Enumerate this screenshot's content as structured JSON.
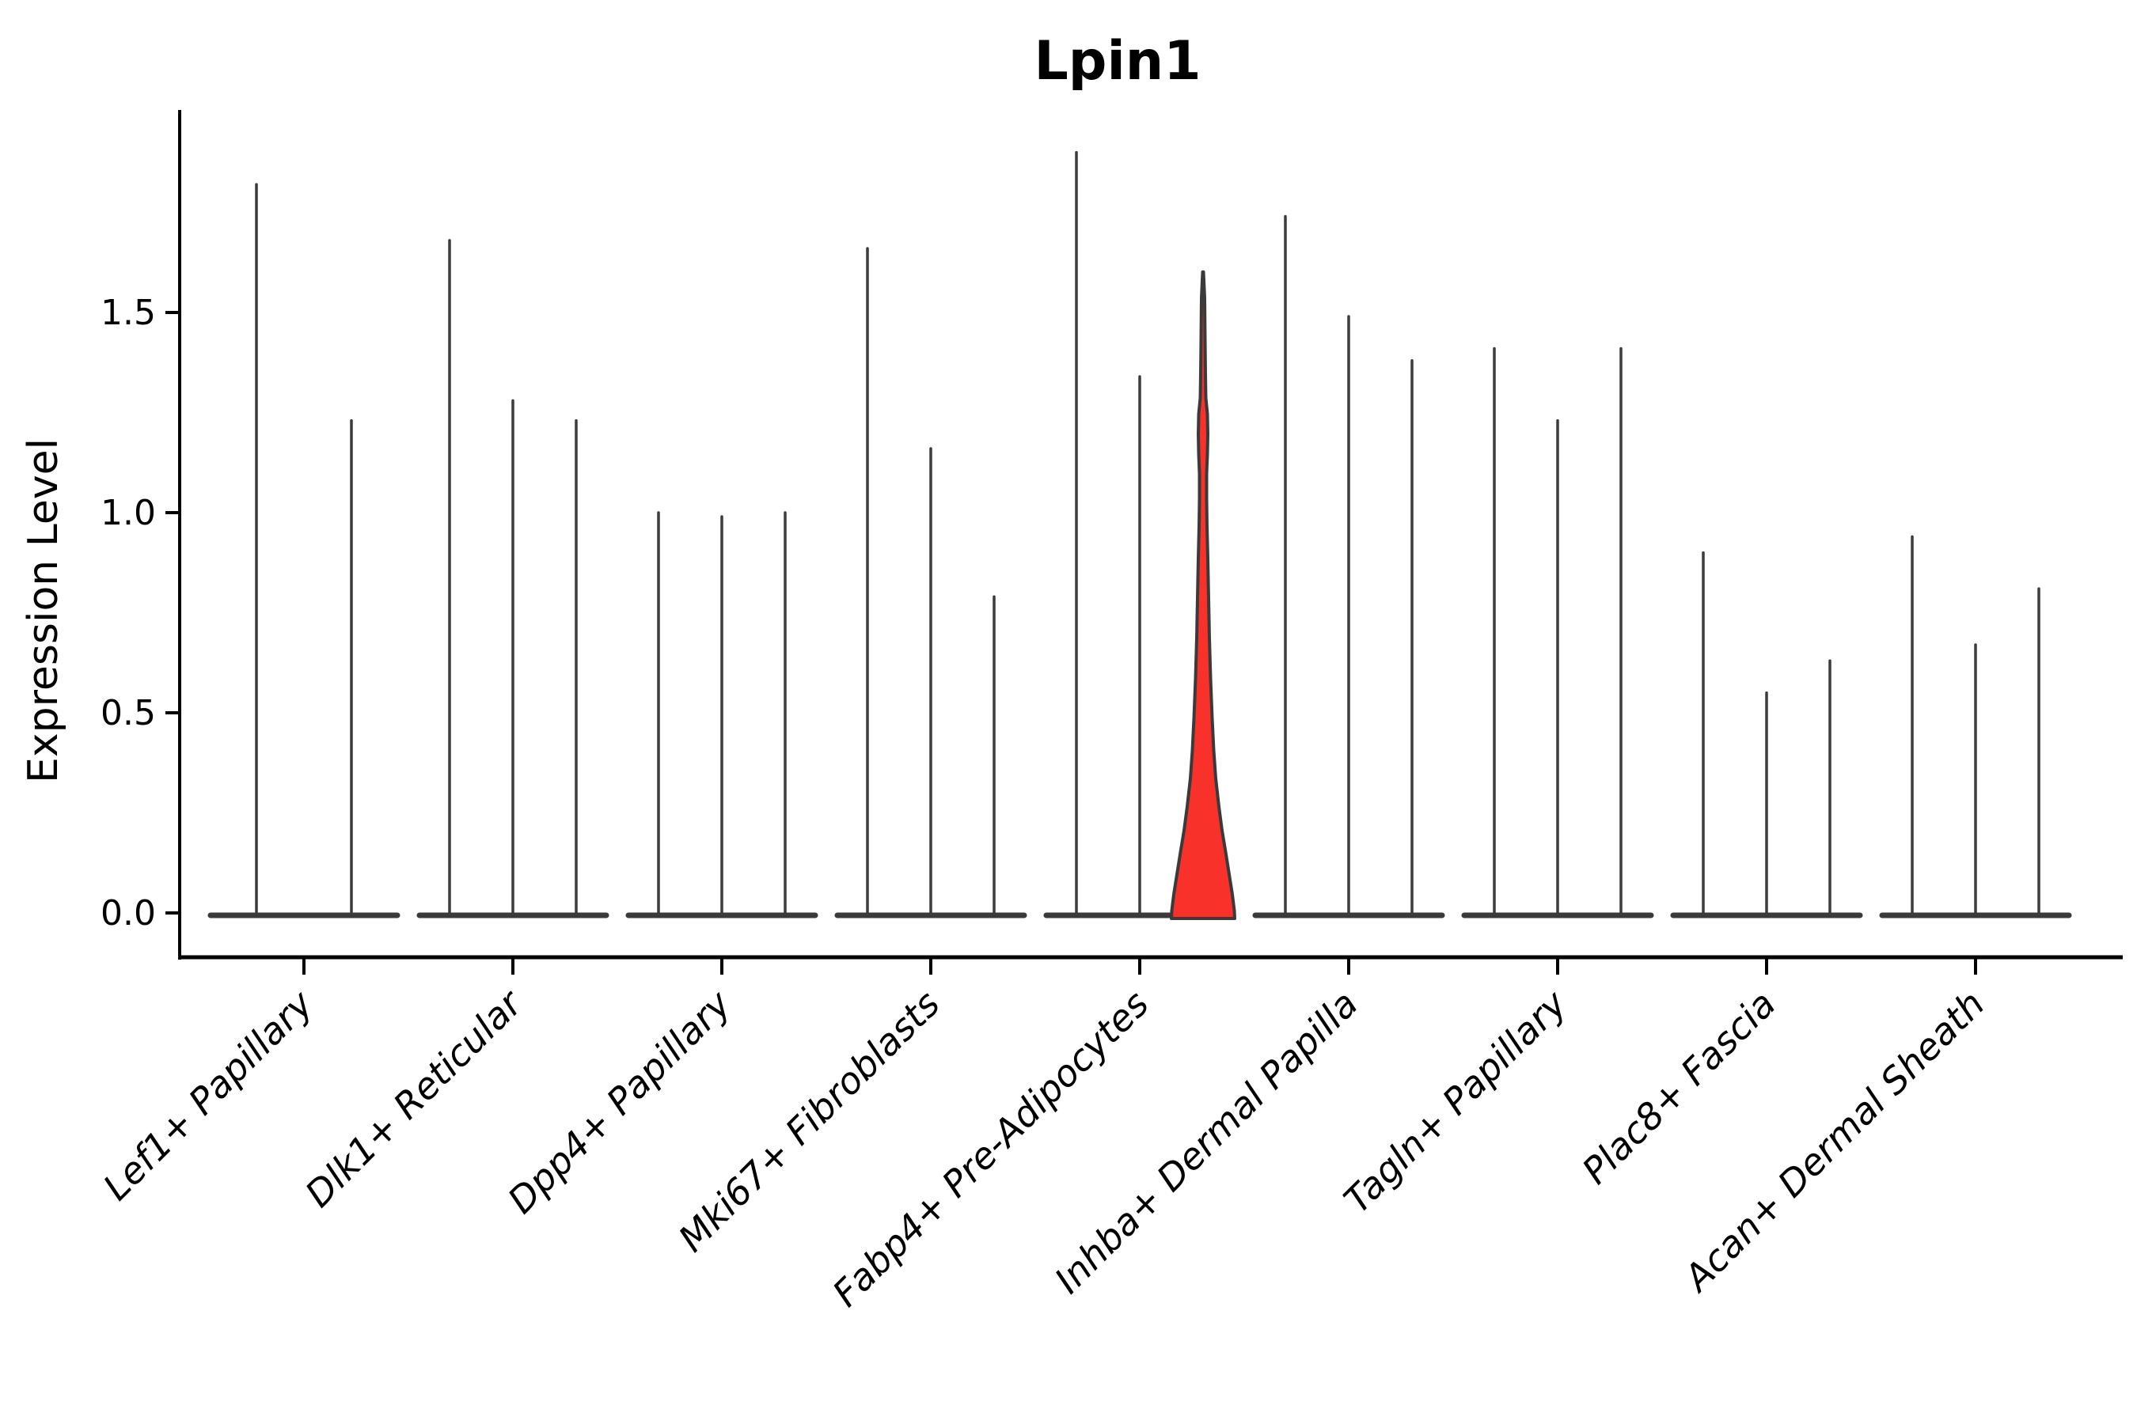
{
  "title": "Lpin1",
  "ylabel": "Expression Level",
  "colors": {
    "background": "#ffffff",
    "violin_stroke": "#3a3a3a",
    "highlight_fill": "#f8322b",
    "axis": "#000000",
    "text": "#000000"
  },
  "chart_data": {
    "type": "violin",
    "title": "Lpin1",
    "ylabel": "Expression Level",
    "xlabel": "",
    "ylim": [
      0,
      2.0
    ],
    "yticks": [
      0.0,
      0.5,
      1.0,
      1.5
    ],
    "grid": false,
    "legend": "none",
    "description": "Violin plot of Lpin1 expression per fibroblast subtype; 2-3 violins per category. Nearly all density sits at expression 0 (violins collapse to flat baselines with thin spikes up to the max expressing cell). Only the third violin of Fabp4+ Pre-Adipocytes is highlighted red with visible density near 0 and a bulge around 1.1-1.3.",
    "categories": [
      "Lef1+ Papillary",
      "Dlk1+ Reticular",
      "Dpp4+ Papillary",
      "Mki67+ Fibroblasts",
      "Fabp4+ Pre-Adipocytes",
      "Inhba+ Dermal Papilla",
      "Tagln+ Papillary",
      "Plac8+ Fascia",
      "Acan+ Dermal Sheath"
    ],
    "groups": [
      {
        "category": "Lef1+ Papillary",
        "violin_max_values": [
          1.82,
          1.23
        ]
      },
      {
        "category": "Dlk1+ Reticular",
        "violin_max_values": [
          1.68,
          1.28,
          1.23
        ]
      },
      {
        "category": "Dpp4+ Papillary",
        "violin_max_values": [
          1.0,
          0.99,
          1.0
        ]
      },
      {
        "category": "Mki67+ Fibroblasts",
        "violin_max_values": [
          1.66,
          1.16,
          0.79
        ]
      },
      {
        "category": "Fabp4+ Pre-Adipocytes",
        "violin_max_values": [
          1.9,
          1.34,
          1.61
        ],
        "highlighted_violin_index": 2
      },
      {
        "category": "Inhba+ Dermal Papilla",
        "violin_max_values": [
          1.74,
          1.49,
          1.38
        ]
      },
      {
        "category": "Tagln+ Papillary",
        "violin_max_values": [
          1.41,
          1.23,
          1.41
        ]
      },
      {
        "category": "Plac8+ Fascia",
        "violin_max_values": [
          0.9,
          0.55,
          0.63
        ]
      },
      {
        "category": "Acan+ Dermal Sheath",
        "violin_max_values": [
          0.94,
          0.67,
          0.81
        ]
      }
    ],
    "highlighted_violin_profile": [
      [
        1.615,
        0.5
      ],
      [
        1.55,
        2
      ],
      [
        1.45,
        2.5
      ],
      [
        1.36,
        3
      ],
      [
        1.3,
        3.5
      ],
      [
        1.26,
        5.5
      ],
      [
        1.21,
        6
      ],
      [
        1.16,
        5.5
      ],
      [
        1.11,
        4.5
      ],
      [
        1.05,
        4.5
      ],
      [
        0.98,
        5
      ],
      [
        0.9,
        6
      ],
      [
        0.8,
        7
      ],
      [
        0.7,
        8
      ],
      [
        0.6,
        9.5
      ],
      [
        0.5,
        11.5
      ],
      [
        0.42,
        13.5
      ],
      [
        0.35,
        16
      ],
      [
        0.28,
        20
      ],
      [
        0.22,
        24
      ],
      [
        0.16,
        29
      ],
      [
        0.11,
        33
      ],
      [
        0.06,
        37
      ],
      [
        0.02,
        39.5
      ],
      [
        0.0,
        40
      ]
    ]
  }
}
